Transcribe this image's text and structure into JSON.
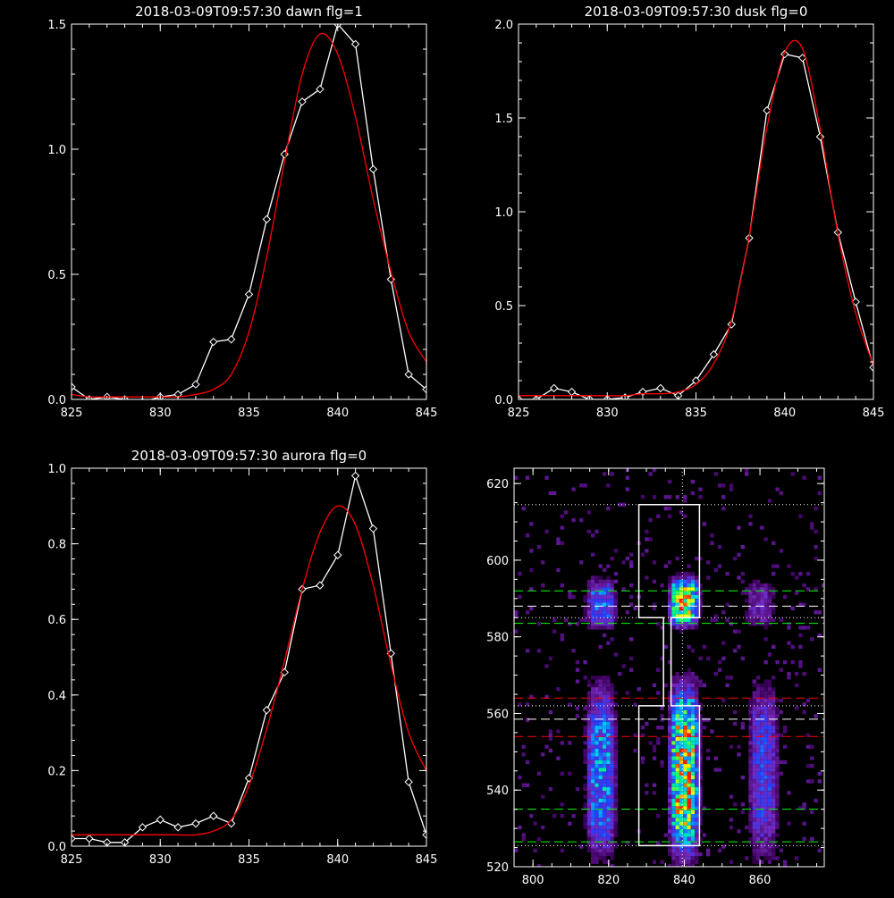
{
  "colors": {
    "background": "#000000",
    "axes": "#ffffff",
    "data_line": "#ffffff",
    "fit_line": "#ff0000",
    "green_line": "#00ff00",
    "red_line": "#ff0000",
    "dotted_line": "#ffffff"
  },
  "chart_data": [
    {
      "type": "line",
      "title": "2018-03-09T09:57:30 dawn flg=1",
      "xlim": [
        825,
        845
      ],
      "ylim": [
        0,
        1.5
      ],
      "xticks": [
        825,
        830,
        835,
        840,
        845
      ],
      "yticks": [
        0.0,
        0.5,
        1.0,
        1.5
      ],
      "xtick_labels": [
        "825",
        "830",
        "835",
        "840",
        "845"
      ],
      "ytick_labels": [
        "0.0",
        "0.5",
        "1.0",
        "1.5"
      ],
      "series": [
        {
          "style": "white-line-diamond-markers",
          "x": [
            825,
            826,
            827,
            828,
            829,
            830,
            831,
            832,
            833,
            834,
            835,
            836,
            837,
            838,
            839,
            840,
            841,
            842,
            843,
            844,
            845
          ],
          "y": [
            0.05,
            0.0,
            0.01,
            0.0,
            -0.01,
            0.01,
            0.02,
            0.06,
            0.23,
            0.24,
            0.42,
            0.72,
            0.98,
            1.19,
            1.24,
            1.5,
            1.42,
            0.92,
            0.48,
            0.1,
            0.04
          ]
        },
        {
          "style": "red-fit-curve",
          "x": [
            825,
            826,
            827,
            828,
            829,
            830,
            831,
            832,
            833,
            834,
            835,
            836,
            837,
            838,
            839,
            840,
            841,
            842,
            843,
            844,
            845
          ],
          "y": [
            0.02,
            0.01,
            0.01,
            0.01,
            0.01,
            0.01,
            0.01,
            0.02,
            0.04,
            0.1,
            0.27,
            0.57,
            0.95,
            1.3,
            1.46,
            1.38,
            1.13,
            0.8,
            0.51,
            0.27,
            0.15
          ]
        }
      ]
    },
    {
      "type": "line",
      "title": "2018-03-09T09:57:30 dusk flg=0",
      "xlim": [
        825,
        845
      ],
      "ylim": [
        0,
        2.0
      ],
      "xticks": [
        825,
        830,
        835,
        840,
        845
      ],
      "yticks": [
        0.0,
        0.5,
        1.0,
        1.5,
        2.0
      ],
      "xtick_labels": [
        "825",
        "830",
        "835",
        "840",
        "845"
      ],
      "ytick_labels": [
        "0.0",
        "0.5",
        "1.0",
        "1.5",
        "2.0"
      ],
      "series": [
        {
          "style": "white-line-diamond-markers",
          "x": [
            825,
            826,
            827,
            828,
            829,
            830,
            831,
            832,
            833,
            834,
            835,
            836,
            837,
            838,
            839,
            840,
            841,
            842,
            843,
            844,
            845
          ],
          "y": [
            0.0,
            0.0,
            0.06,
            0.04,
            0.0,
            0.0,
            0.01,
            0.04,
            0.06,
            0.02,
            0.1,
            0.24,
            0.4,
            0.86,
            1.54,
            1.84,
            1.82,
            1.4,
            0.89,
            0.52,
            0.17
          ]
        },
        {
          "style": "red-fit-curve",
          "x": [
            825,
            826,
            827,
            828,
            829,
            830,
            831,
            832,
            833,
            834,
            835,
            836,
            837,
            838,
            839,
            840,
            841,
            842,
            843,
            844,
            845
          ],
          "y": [
            0.02,
            0.02,
            0.02,
            0.02,
            0.02,
            0.02,
            0.02,
            0.03,
            0.03,
            0.04,
            0.08,
            0.19,
            0.42,
            0.87,
            1.45,
            1.85,
            1.87,
            1.44,
            0.88,
            0.46,
            0.18
          ]
        }
      ]
    },
    {
      "type": "line",
      "title": "2018-03-09T09:57:30 aurora flg=0",
      "xlim": [
        825,
        845
      ],
      "ylim": [
        0,
        1.0
      ],
      "xticks": [
        825,
        830,
        835,
        840,
        845
      ],
      "yticks": [
        0.0,
        0.2,
        0.4,
        0.6,
        0.8,
        1.0
      ],
      "xtick_labels": [
        "825",
        "830",
        "835",
        "840",
        "845"
      ],
      "ytick_labels": [
        "0.0",
        "0.2",
        "0.4",
        "0.6",
        "0.8",
        "1.0"
      ],
      "series": [
        {
          "style": "white-line-diamond-markers",
          "x": [
            825,
            826,
            827,
            828,
            829,
            830,
            831,
            832,
            833,
            834,
            835,
            836,
            837,
            838,
            839,
            840,
            841,
            842,
            843,
            844,
            845
          ],
          "y": [
            0.02,
            0.02,
            0.01,
            0.01,
            0.05,
            0.07,
            0.05,
            0.06,
            0.08,
            0.06,
            0.18,
            0.36,
            0.46,
            0.68,
            0.69,
            0.77,
            0.98,
            0.84,
            0.51,
            0.17,
            0.03
          ]
        },
        {
          "style": "red-fit-curve",
          "x": [
            825,
            826,
            827,
            828,
            829,
            830,
            831,
            832,
            833,
            834,
            835,
            836,
            837,
            838,
            839,
            840,
            841,
            842,
            843,
            844,
            845
          ],
          "y": [
            0.03,
            0.03,
            0.03,
            0.03,
            0.03,
            0.03,
            0.03,
            0.03,
            0.04,
            0.07,
            0.16,
            0.31,
            0.49,
            0.68,
            0.83,
            0.9,
            0.85,
            0.69,
            0.48,
            0.3,
            0.2
          ]
        }
      ]
    },
    {
      "type": "heatmap",
      "xlim": [
        795,
        877
      ],
      "ylim": [
        520,
        624
      ],
      "xticks": [
        800,
        820,
        840,
        860
      ],
      "yticks": [
        520,
        540,
        560,
        580,
        600,
        620
      ],
      "xtick_labels": [
        "800",
        "820",
        "840",
        "860"
      ],
      "ytick_labels": [
        "520",
        "540",
        "560",
        "580",
        "600",
        "620"
      ],
      "blobs": [
        {
          "x": 818,
          "y": 588.5,
          "intensity": 0.55
        },
        {
          "x": 840,
          "y": 589,
          "intensity": 0.95
        },
        {
          "x": 860,
          "y": 588.5,
          "intensity": 0.3
        },
        {
          "x": 818,
          "y": 545,
          "intensity": 0.6
        },
        {
          "x": 840,
          "y": 545,
          "intensity": 0.95
        },
        {
          "x": 861,
          "y": 545,
          "intensity": 0.45
        }
      ],
      "horizontal_lines": [
        {
          "y": 614.5,
          "style": "dotted",
          "color": "white"
        },
        {
          "y": 592,
          "style": "dashed",
          "color": "green"
        },
        {
          "y": 588,
          "style": "dashed",
          "color": "white"
        },
        {
          "y": 585,
          "style": "dotted",
          "color": "white"
        },
        {
          "y": 583.5,
          "style": "dashed",
          "color": "green"
        },
        {
          "y": 564,
          "style": "dashed",
          "color": "red"
        },
        {
          "y": 562,
          "style": "dotted",
          "color": "white"
        },
        {
          "y": 558.5,
          "style": "dashed",
          "color": "white"
        },
        {
          "y": 554,
          "style": "dashed",
          "color": "red"
        },
        {
          "y": 535,
          "style": "dashed",
          "color": "green"
        },
        {
          "y": 526.5,
          "style": "dashed",
          "color": "green"
        },
        {
          "y": 525.5,
          "style": "dotted",
          "color": "white"
        }
      ],
      "vertical_lines": [
        {
          "x": 839.5,
          "style": "dotted",
          "color": "white"
        }
      ],
      "outline_polygon": [
        [
          828,
          614.5
        ],
        [
          844,
          614.5
        ],
        [
          844,
          585
        ],
        [
          836.5,
          585
        ],
        [
          836.5,
          562
        ],
        [
          844,
          562
        ],
        [
          844,
          525.5
        ],
        [
          828,
          525.5
        ],
        [
          828,
          562
        ],
        [
          834.5,
          562
        ],
        [
          834.5,
          585
        ],
        [
          828,
          585
        ]
      ]
    }
  ]
}
